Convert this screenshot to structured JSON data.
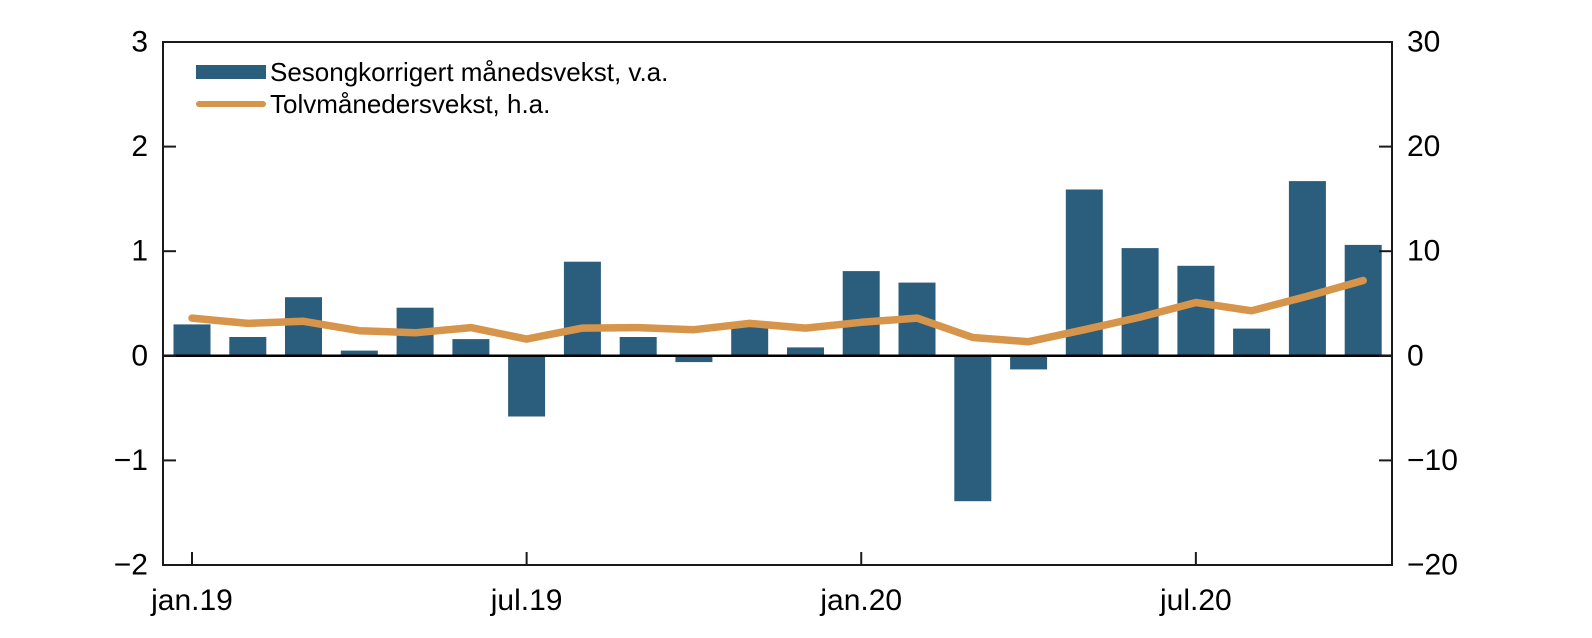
{
  "chart_data": {
    "type": "combo",
    "title": "",
    "categories": [
      "jan.19",
      "feb.19",
      "mar.19",
      "apr.19",
      "mai.19",
      "jun.19",
      "jul.19",
      "aug.19",
      "sep.19",
      "okt.19",
      "nov.19",
      "des.19",
      "jan.20",
      "feb.20",
      "mar.20",
      "apr.20",
      "mai.20",
      "jun.20",
      "jul.20",
      "aug.20",
      "sep.20",
      "okt.20"
    ],
    "series": [
      {
        "name": "Sesongkorrigert månedsvekst, v.a.",
        "type": "bar",
        "axis": "left",
        "color": "#2B5E7D",
        "values": [
          0.3,
          0.18,
          0.56,
          0.05,
          0.46,
          0.16,
          -0.58,
          0.9,
          0.18,
          -0.06,
          0.28,
          0.08,
          0.81,
          0.7,
          -1.39,
          -0.13,
          1.59,
          1.03,
          0.86,
          0.26,
          1.67,
          1.06
        ]
      },
      {
        "name": "Tolvmånedersvekst, h.a.",
        "type": "line",
        "axis": "right",
        "color": "#D6954B",
        "values": [
          3.6,
          3.1,
          3.3,
          2.4,
          2.2,
          2.7,
          1.6,
          2.65,
          2.7,
          2.5,
          3.1,
          2.65,
          3.2,
          3.6,
          1.75,
          1.35,
          2.5,
          3.7,
          5.1,
          4.3,
          5.7,
          7.2
        ]
      }
    ],
    "left_axis": {
      "min": -2,
      "max": 3,
      "ticks": [
        3,
        2,
        1,
        0,
        -1,
        -2
      ]
    },
    "right_axis": {
      "min": -20,
      "max": 30,
      "ticks": [
        30,
        20,
        10,
        0,
        -10,
        -20
      ]
    },
    "x_ticks": [
      "jan.19",
      "jul.19",
      "jan.20",
      "jul.20"
    ],
    "legend_position": "top-left",
    "grid": false,
    "zero_line": true,
    "axis_color": "#1a1a1a",
    "zero_line_color": "#000000",
    "label_color": "#000000"
  }
}
